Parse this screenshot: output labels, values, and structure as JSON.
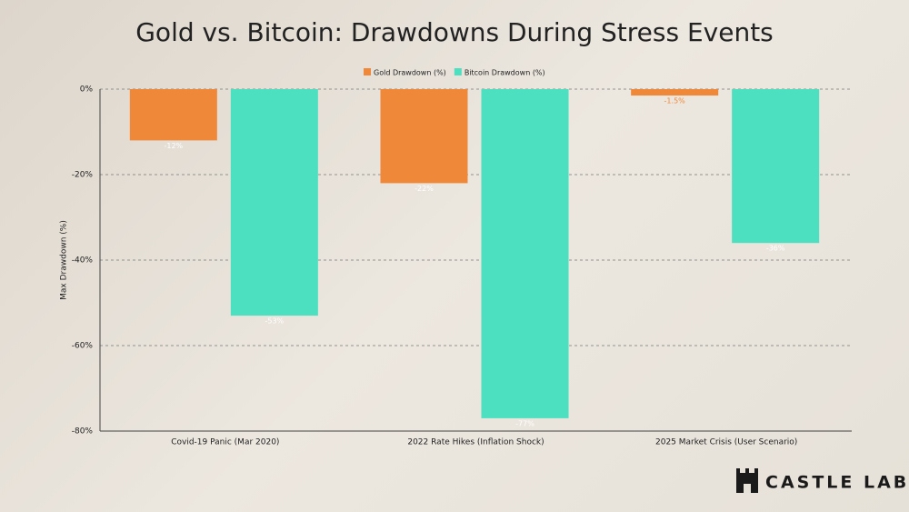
{
  "chart_data": {
    "type": "bar",
    "title": "Gold vs. Bitcoin: Drawdowns During Stress Events",
    "y_label": "Max Drawdown (%)",
    "categories": [
      "Covid-19 Panic (Mar 2020)",
      "2022 Rate Hikes (Inflation Shock)",
      "2025 Market Crisis (User Scenario)"
    ],
    "series": [
      {
        "name": "Gold Drawdown (%)",
        "color": "#f0883a",
        "values": [
          -12,
          -22,
          -1.5
        ],
        "value_labels": [
          "-12%",
          "-22%",
          "-1.5%"
        ]
      },
      {
        "name": "Bitcoin Drawdown (%)",
        "color": "#4cdfc0",
        "values": [
          -53,
          -77,
          -36
        ],
        "value_labels": [
          "-53%",
          "-77%",
          "-36%"
        ]
      }
    ],
    "ylim": [
      -80,
      0
    ],
    "yticks": [
      {
        "value": 0,
        "label": "0%"
      },
      {
        "value": -20,
        "label": "-20%"
      },
      {
        "value": -40,
        "label": "-40%"
      },
      {
        "value": -60,
        "label": "-60%"
      },
      {
        "value": -80,
        "label": "-80%"
      }
    ],
    "grid": true
  },
  "brand": "CASTLE LABS"
}
